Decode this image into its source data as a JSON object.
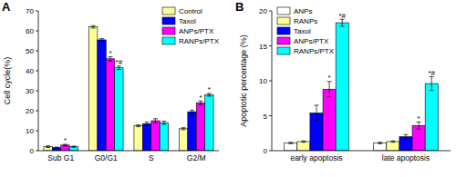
{
  "chart_data": [
    {
      "type": "bar",
      "panel": "A",
      "y_label": "Cell cycle(%)",
      "categories": [
        "Sub G1",
        "G0/G1",
        "S",
        "G2/M"
      ],
      "ylim": [
        0,
        70
      ],
      "yticks": [
        0,
        10,
        20,
        30,
        40,
        50,
        60,
        70
      ],
      "legend": "upper right",
      "series": [
        {
          "name": "Control",
          "color": "#ffff99",
          "values": [
            2,
            62,
            12.5,
            11
          ],
          "errors": [
            0.4,
            0.6,
            0.5,
            0.5
          ],
          "significance": [
            null,
            null,
            null,
            null
          ]
        },
        {
          "name": "Taxol",
          "color": "#0000ff",
          "values": [
            1.5,
            55.5,
            13.5,
            19.5
          ],
          "errors": [
            0.3,
            0.6,
            0.8,
            0.8
          ],
          "significance": [
            null,
            null,
            null,
            null
          ]
        },
        {
          "name": "ANPs/PTX",
          "color": "#ff00ff",
          "values": [
            2.8,
            46,
            15,
            24
          ],
          "errors": [
            0.4,
            1,
            1,
            0.9
          ],
          "significance": [
            "*",
            "*",
            null,
            "*"
          ]
        },
        {
          "name": "RANPs/PTX",
          "color": "#00ffff",
          "values": [
            2,
            41.5,
            14,
            28
          ],
          "errors": [
            0.3,
            0.9,
            0.8,
            0.7
          ],
          "significance": [
            null,
            "*#",
            null,
            "*"
          ]
        }
      ]
    },
    {
      "type": "bar",
      "panel": "B",
      "y_label": "Apoptotic percentage (%)",
      "categories": [
        "early apoptosis",
        "late apoptosis"
      ],
      "ylim": [
        0,
        20
      ],
      "yticks": [
        0,
        5,
        10,
        15,
        20
      ],
      "legend": "upper left",
      "series": [
        {
          "name": "ANPs",
          "color": "#ffffff",
          "values": [
            1.1,
            1.1
          ],
          "errors": [
            0.1,
            0.1
          ],
          "significance": [
            null,
            null
          ]
        },
        {
          "name": "RANPs",
          "color": "#ffff99",
          "values": [
            1.3,
            1.3
          ],
          "errors": [
            0.1,
            0.1
          ],
          "significance": [
            null,
            null
          ]
        },
        {
          "name": "Taxol",
          "color": "#0000ff",
          "values": [
            5.4,
            2
          ],
          "errors": [
            1.1,
            0.3
          ],
          "significance": [
            null,
            null
          ]
        },
        {
          "name": "ANPs/PTX",
          "color": "#ff00ff",
          "values": [
            8.8,
            3.6
          ],
          "errors": [
            1.1,
            0.5
          ],
          "significance": [
            "*",
            "*"
          ]
        },
        {
          "name": "RANPs/PTX",
          "color": "#00ffff",
          "values": [
            18.3,
            9.6
          ],
          "errors": [
            0.5,
            1
          ],
          "significance": [
            "*#",
            "*#"
          ]
        }
      ]
    }
  ]
}
